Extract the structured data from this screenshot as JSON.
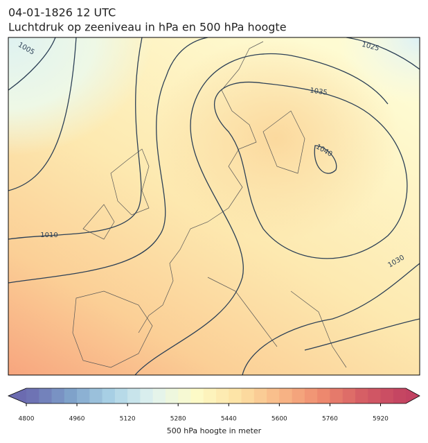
{
  "header": {
    "title": "04-01-1826 12 UTC",
    "subtitle": "Luchtdruk op zeeniveau in hPa en 500 hPa hoogte"
  },
  "contour_labels": [
    1005,
    1025,
    1035,
    1040,
    1010,
    1030
  ],
  "colorbar": {
    "label": "500 hPa hoogte in meter",
    "lim": [
      4800,
      6000
    ],
    "ticks": [
      4800,
      4960,
      5120,
      5280,
      5440,
      5600,
      5760,
      5920
    ]
  }
}
